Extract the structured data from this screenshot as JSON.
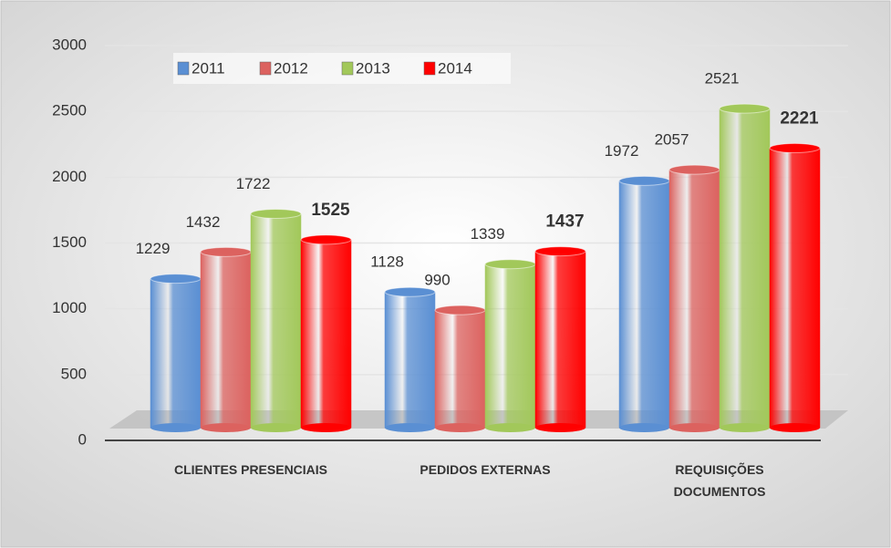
{
  "chart_data": {
    "type": "bar",
    "categories": [
      "CLIENTES PRESENCIAIS",
      "PEDIDOS EXTERNAS",
      "REQUISIÇÕES DOCUMENTOS"
    ],
    "series": [
      {
        "name": "2011",
        "color": "#5a8fd3",
        "values": [
          1229,
          1128,
          1972
        ]
      },
      {
        "name": "2012",
        "color": "#dc625f",
        "values": [
          1432,
          990,
          2057
        ]
      },
      {
        "name": "2013",
        "color": "#a2c85a",
        "values": [
          1722,
          1339,
          2521
        ]
      },
      {
        "name": "2014",
        "color": "#ff0000",
        "values": [
          1525,
          1437,
          2221
        ]
      }
    ],
    "ylim": [
      0,
      3000
    ],
    "yticks": [
      0,
      500,
      1000,
      1500,
      2000,
      2500,
      3000
    ],
    "grid": true,
    "legend": "top"
  }
}
